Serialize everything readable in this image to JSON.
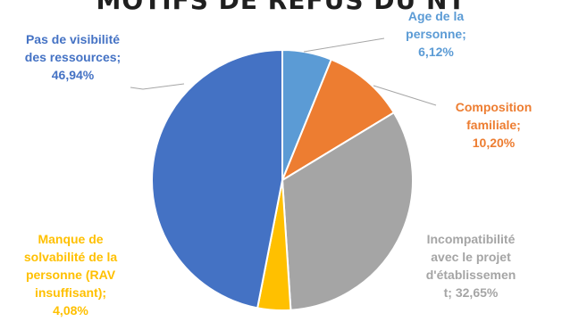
{
  "chart_data": {
    "type": "pie",
    "title": "MOTIFS DE REFUS DU NT",
    "slices": [
      {
        "label": "Age de la\npersonne;\n6,12%",
        "value": 6.12,
        "color": "#5b9bd5"
      },
      {
        "label": "Composition\nfamiliale;\n10,20%",
        "value": 10.2,
        "color": "#ed7d31"
      },
      {
        "label": "Incompatibilité\navec le projet\nd'établissemen\nt; 32,65%",
        "value": 32.65,
        "color": "#a5a5a5"
      },
      {
        "label": "Manque de\nsolvabilité de la\npersonne (RAV\ninsuffisant);\n4,08%",
        "value": 4.08,
        "color": "#ffc000"
      },
      {
        "label": "Pas de visibilité\ndes ressources;\n46,94%",
        "value": 46.94,
        "color": "#4472c4"
      }
    ],
    "legend": "none"
  }
}
